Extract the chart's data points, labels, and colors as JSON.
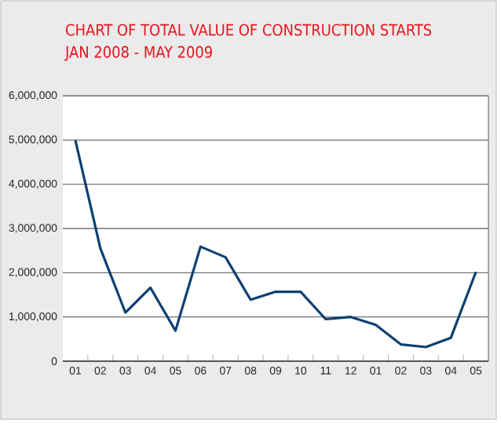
{
  "chart_data": {
    "type": "line",
    "title": "CHART OF TOTAL VALUE OF CONSTRUCTION STARTS",
    "subtitle": "JAN 2008 - MAY 2009",
    "categories": [
      "01",
      "02",
      "03",
      "04",
      "05",
      "06",
      "07",
      "08",
      "09",
      "10",
      "11",
      "12",
      "01",
      "02",
      "03",
      "04",
      "05"
    ],
    "series": [
      {
        "color": "#0d3f73",
        "values": [
          5000000,
          2550000,
          1100000,
          1660000,
          690000,
          2590000,
          2350000,
          1390000,
          1570000,
          1570000,
          950000,
          1000000,
          820000,
          380000,
          320000,
          530000,
          2020000
        ]
      }
    ],
    "ylim": [
      0,
      6000000
    ],
    "yticks": [
      {
        "value": 0,
        "label": "0"
      },
      {
        "value": 1000000,
        "label": "1,000,000"
      },
      {
        "value": 2000000,
        "label": "2,000,000"
      },
      {
        "value": 3000000,
        "label": "3,000,000"
      },
      {
        "value": 4000000,
        "label": "4,000,000"
      },
      {
        "value": 5000000,
        "label": "5,000,000"
      },
      {
        "value": 6000000,
        "label": "6,000,000"
      }
    ],
    "grid": "y",
    "marker": "none",
    "line_style": "solid"
  }
}
